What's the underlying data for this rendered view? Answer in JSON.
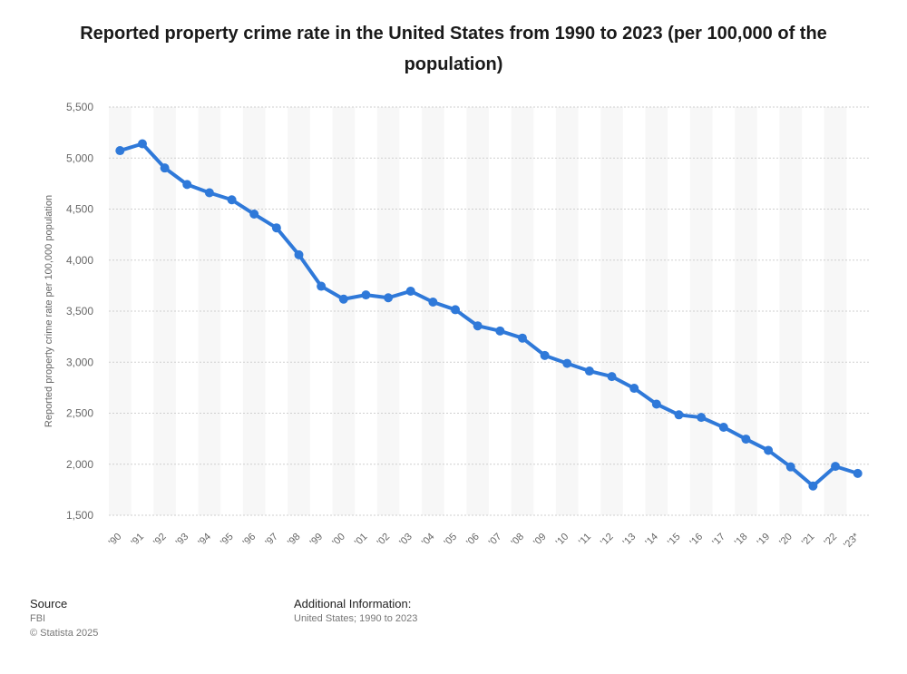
{
  "chart_data": {
    "type": "line",
    "title": "Reported property crime rate in the United States from 1990 to 2023 (per 100,000 of the population)",
    "xlabel": "",
    "ylabel": "Reported property crime rate per 100,000 population",
    "ylim": [
      1500,
      5500
    ],
    "yticks": [
      1500,
      2000,
      2500,
      3000,
      3500,
      4000,
      4500,
      5000,
      5500
    ],
    "ytick_labels": [
      "1,500",
      "2,000",
      "2,500",
      "3,000",
      "3,500",
      "4,000",
      "4,500",
      "5,000",
      "5,500"
    ],
    "categories": [
      "'90",
      "'91",
      "'92",
      "'93",
      "'94",
      "'95",
      "'96",
      "'97",
      "'98",
      "'99",
      "'00",
      "'01",
      "'02",
      "'03",
      "'04",
      "'05",
      "'06",
      "'07",
      "'08",
      "'09",
      "'10",
      "'11",
      "'12",
      "'13",
      "'14",
      "'15",
      "'16",
      "'17",
      "'18",
      "'19",
      "'20",
      "'21",
      "'22",
      "'23*"
    ],
    "series": [
      {
        "name": "Property crime rate",
        "color": "#2f79d9",
        "values": [
          5073,
          5140,
          4903,
          4741,
          4660,
          4591,
          4451,
          4316,
          4052,
          3744,
          3618,
          3659,
          3631,
          3696,
          3589,
          3514,
          3356,
          3306,
          3236,
          3066,
          2988,
          2913,
          2859,
          2744,
          2589,
          2484,
          2459,
          2362,
          2246,
          2136,
          1974,
          1787,
          1979,
          1910
        ]
      }
    ],
    "grid": true,
    "legend": "none"
  },
  "footer": {
    "source_heading": "Source",
    "source_name": "FBI",
    "copyright": "© Statista 2025",
    "additional_heading": "Additional Information:",
    "additional_text": "United States; 1990 to 2023"
  }
}
